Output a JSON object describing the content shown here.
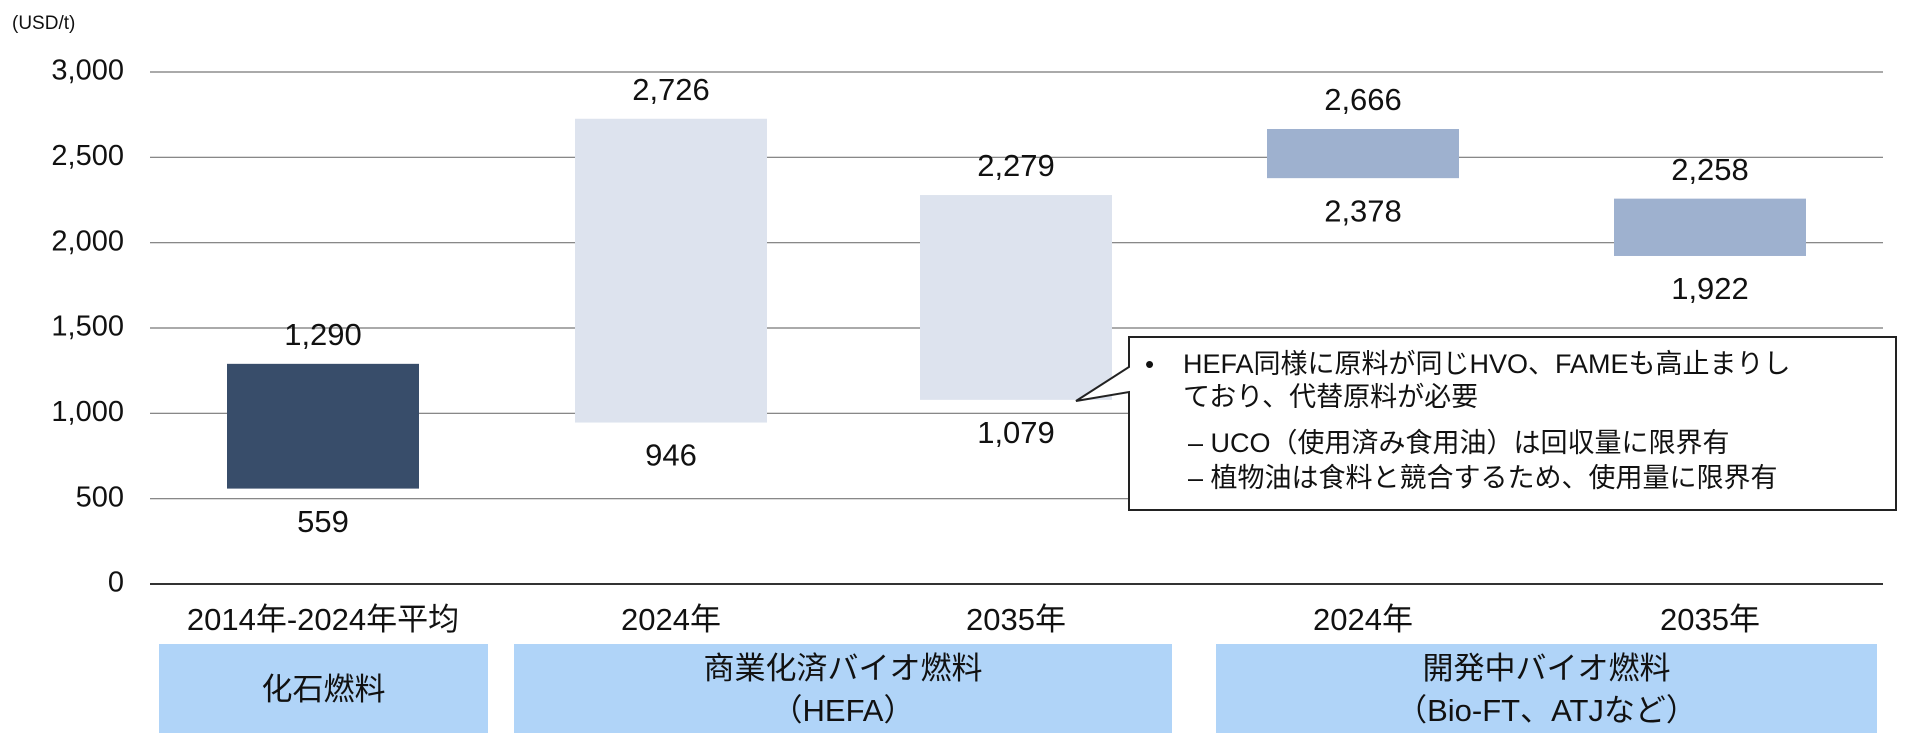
{
  "chart_data": {
    "type": "range",
    "unit_label": "(USD/t)",
    "categories": [
      "2014年-2024年平均",
      "2024年",
      "2035年",
      "2024年",
      "2035年"
    ],
    "low": [
      559,
      946,
      1079,
      2378,
      1922
    ],
    "low_labels": [
      "559",
      "946",
      "1,079",
      "2,378",
      "1,922"
    ],
    "high": [
      1290,
      2726,
      2279,
      2666,
      2258
    ],
    "high_labels": [
      "1,290",
      "2,726",
      "2,279",
      "2,666",
      "2,258"
    ],
    "colors": [
      "#384d6a",
      "#dde3ee",
      "#dde3ee",
      "#9eb1cf",
      "#9eb1cf"
    ],
    "ylim": [
      0,
      3000
    ],
    "yticks": [
      0,
      500,
      {
        "value": 1000,
        "label": "1,000"
      },
      {
        "value": 1500,
        "label": "1,500"
      },
      {
        "value": 2000,
        "label": "2,000"
      },
      {
        "value": 2500,
        "label": "2,500"
      },
      {
        "value": 3000,
        "label": "3,000"
      }
    ],
    "grid": true,
    "groups": [
      {
        "lines": [
          "化石燃料"
        ]
      },
      {
        "lines": [
          "商業化済バイオ燃料",
          "（HEFA）"
        ]
      },
      {
        "lines": [
          "開発中バイオ燃料",
          "（Bio-FT、ATJなど）"
        ]
      }
    ],
    "annotation": {
      "bullet": "•",
      "lines": [
        "HEFA同様に原料が同じHVO、FAMEも高止まりし",
        "ており、代替原料が必要"
      ],
      "sub_items": [
        "– UCO（使用済み食用油）は回収量に限界有",
        "– 植物油は食料と競合するため、使用量に限界有"
      ]
    }
  }
}
